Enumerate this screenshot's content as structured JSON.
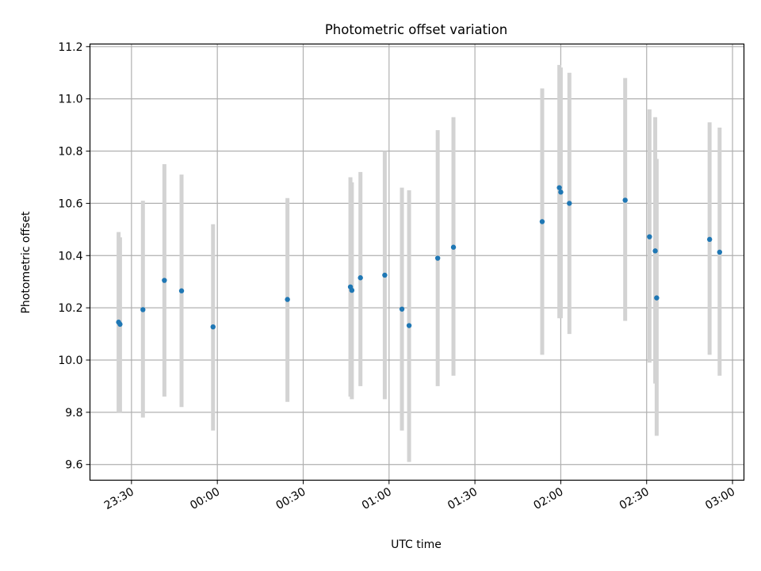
{
  "chart_data": {
    "type": "scatter",
    "title": "Photometric offset variation",
    "xlabel": "UTC time",
    "ylabel": "Photometric offset",
    "x_axis_type": "time",
    "x_ticks": [
      "23:30",
      "00:00",
      "00:30",
      "01:00",
      "01:30",
      "02:00",
      "02:30",
      "03:00"
    ],
    "x_tick_dates": [
      "2000-01-01T23:30:00",
      "2000-01-02T00:00:00",
      "2000-01-02T00:30:00",
      "2000-01-02T01:00:00",
      "2000-01-02T01:30:00",
      "2000-01-02T02:00:00",
      "2000-01-02T02:30:00",
      "2000-01-02T03:00:00"
    ],
    "y_ticks": [
      "9.6",
      "9.8",
      "10.0",
      "10.2",
      "10.4",
      "10.6",
      "10.8",
      "11.0",
      "11.2"
    ],
    "y_tick_values": [
      9.6,
      9.8,
      10.0,
      10.2,
      10.4,
      10.6,
      10.8,
      11.0,
      11.2
    ],
    "xlim": [
      "2000-01-01T23:15:30",
      "2000-01-02T03:04:00"
    ],
    "ylim": [
      9.54,
      11.21
    ],
    "grid": true,
    "colors": {
      "point": "#1f77b4",
      "errorbar": "#d3d3d3",
      "grid": "#b0b0b0"
    },
    "points": [
      {
        "time": "2000-01-01T23:25:30",
        "y": 10.145,
        "ylow": 9.8,
        "yhigh": 10.49
      },
      {
        "time": "2000-01-01T23:26:00",
        "y": 10.137,
        "ylow": 9.8,
        "yhigh": 10.47
      },
      {
        "time": "2000-01-01T23:34:00",
        "y": 10.193,
        "ylow": 9.78,
        "yhigh": 10.61
      },
      {
        "time": "2000-01-01T23:41:30",
        "y": 10.305,
        "ylow": 9.86,
        "yhigh": 10.75
      },
      {
        "time": "2000-01-01T23:47:30",
        "y": 10.265,
        "ylow": 9.82,
        "yhigh": 10.71
      },
      {
        "time": "2000-01-01T23:58:30",
        "y": 10.127,
        "ylow": 9.73,
        "yhigh": 10.52
      },
      {
        "time": "2000-01-02T00:24:30",
        "y": 10.232,
        "ylow": 9.84,
        "yhigh": 10.62
      },
      {
        "time": "2000-01-02T00:46:30",
        "y": 10.28,
        "ylow": 9.86,
        "yhigh": 10.7
      },
      {
        "time": "2000-01-02T00:47:00",
        "y": 10.267,
        "ylow": 9.85,
        "yhigh": 10.68
      },
      {
        "time": "2000-01-02T00:50:00",
        "y": 10.315,
        "ylow": 9.9,
        "yhigh": 10.72
      },
      {
        "time": "2000-01-02T00:58:30",
        "y": 10.325,
        "ylow": 9.85,
        "yhigh": 10.8
      },
      {
        "time": "2000-01-02T01:04:30",
        "y": 10.195,
        "ylow": 9.73,
        "yhigh": 10.66
      },
      {
        "time": "2000-01-02T01:07:00",
        "y": 10.132,
        "ylow": 9.61,
        "yhigh": 10.65
      },
      {
        "time": "2000-01-02T01:17:00",
        "y": 10.39,
        "ylow": 9.9,
        "yhigh": 10.88
      },
      {
        "time": "2000-01-02T01:22:30",
        "y": 10.432,
        "ylow": 9.94,
        "yhigh": 10.93
      },
      {
        "time": "2000-01-02T01:53:30",
        "y": 10.53,
        "ylow": 10.02,
        "yhigh": 11.04
      },
      {
        "time": "2000-01-02T01:59:30",
        "y": 10.66,
        "ylow": 10.16,
        "yhigh": 11.13
      },
      {
        "time": "2000-01-02T02:00:00",
        "y": 10.643,
        "ylow": 10.16,
        "yhigh": 11.12
      },
      {
        "time": "2000-01-02T02:03:00",
        "y": 10.6,
        "ylow": 10.1,
        "yhigh": 11.1
      },
      {
        "time": "2000-01-02T02:22:30",
        "y": 10.612,
        "ylow": 10.15,
        "yhigh": 11.08
      },
      {
        "time": "2000-01-02T02:31:00",
        "y": 10.472,
        "ylow": 9.99,
        "yhigh": 10.96
      },
      {
        "time": "2000-01-02T02:33:00",
        "y": 10.418,
        "ylow": 9.91,
        "yhigh": 10.93
      },
      {
        "time": "2000-01-02T02:33:30",
        "y": 10.238,
        "ylow": 9.71,
        "yhigh": 10.77
      },
      {
        "time": "2000-01-02T02:52:00",
        "y": 10.462,
        "ylow": 10.02,
        "yhigh": 10.91
      },
      {
        "time": "2000-01-02T02:55:30",
        "y": 10.413,
        "ylow": 9.94,
        "yhigh": 10.89
      }
    ]
  }
}
